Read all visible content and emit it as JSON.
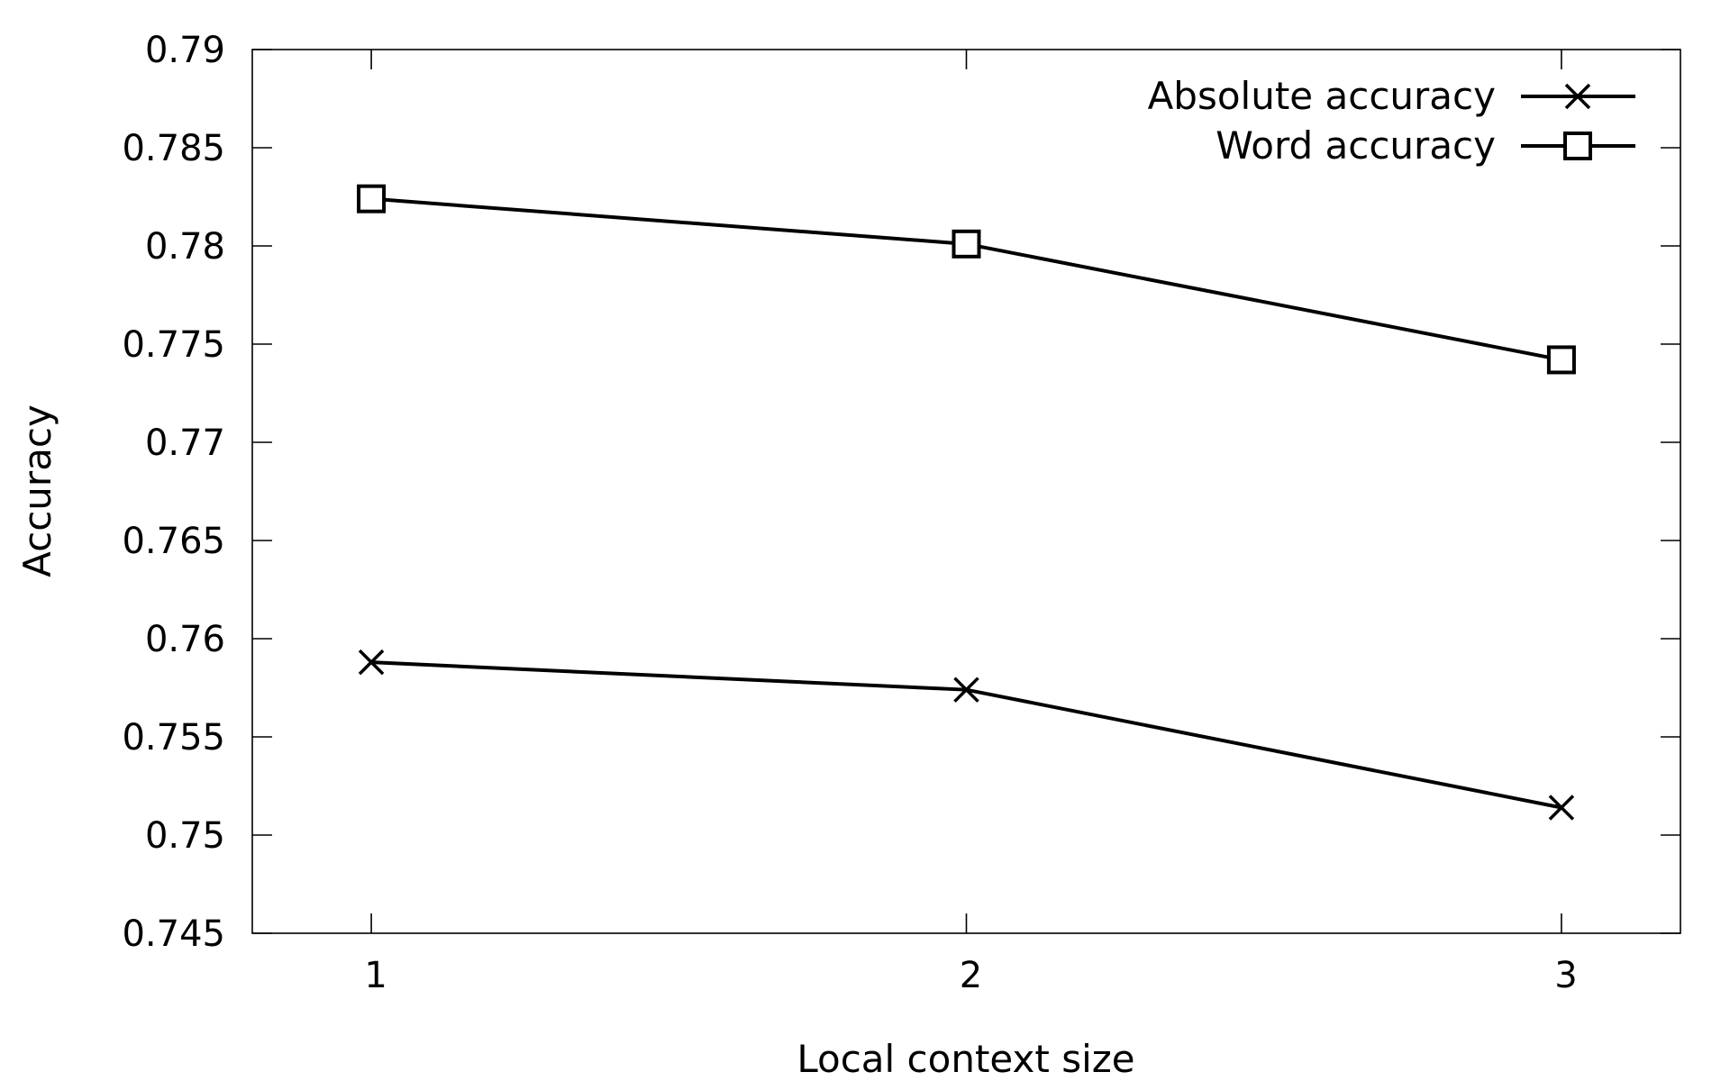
{
  "chart_data": {
    "type": "line",
    "title": "",
    "xlabel": "Local context size",
    "ylabel": "Accuracy",
    "x": [
      1,
      2,
      3
    ],
    "x_ticks": [
      "1",
      "2",
      "3"
    ],
    "xlim": [
      0.8,
      3.2
    ],
    "ylim": [
      0.745,
      0.79
    ],
    "y_ticks": [
      "0.745",
      "0.75",
      "0.755",
      "0.76",
      "0.765",
      "0.77",
      "0.775",
      "0.78",
      "0.785",
      "0.79"
    ],
    "grid": false,
    "legend_position": "top-right",
    "color": "#000000",
    "series": [
      {
        "name": "Absolute accuracy",
        "marker": "x",
        "values": [
          0.7588,
          0.7574,
          0.7514
        ]
      },
      {
        "name": "Word accuracy",
        "marker": "square",
        "values": [
          0.7824,
          0.7801,
          0.7742
        ]
      }
    ]
  }
}
